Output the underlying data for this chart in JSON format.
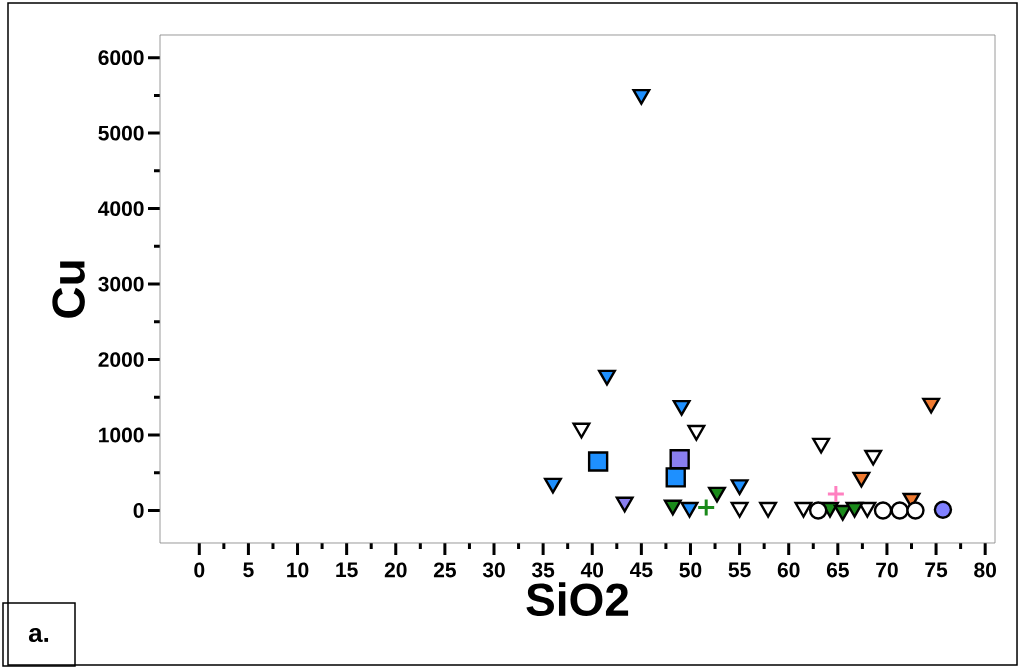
{
  "chart_data": {
    "type": "scatter",
    "xlabel": "SiO2",
    "ylabel": "Cu",
    "xlim": [
      -4,
      81
    ],
    "ylim": [
      -430,
      6300
    ],
    "xticks": [
      0,
      5,
      10,
      15,
      20,
      25,
      30,
      35,
      40,
      45,
      50,
      55,
      60,
      65,
      70,
      75,
      80
    ],
    "yticks": [
      0,
      1000,
      2000,
      3000,
      4000,
      5000,
      6000
    ],
    "annotations": [
      "a."
    ],
    "series": [
      {
        "color": "#1e90ff",
        "marker": "triangle",
        "x": [
          45.0,
          41.5,
          49.1,
          36.0,
          55.0,
          49.9
        ],
        "values": [
          5510,
          1790,
          1390,
          360,
          340,
          40
        ]
      },
      {
        "color": "#ffffff",
        "marker": "triangle",
        "x": [
          38.9,
          50.6,
          63.3,
          68.6,
          55.0,
          57.9,
          61.5,
          68.0
        ],
        "values": [
          1090,
          1060,
          890,
          730,
          40,
          40,
          40,
          40
        ]
      },
      {
        "color": "#1e90ff",
        "marker": "square",
        "x": [
          40.6,
          48.5
        ],
        "values": [
          650,
          440
        ]
      },
      {
        "color": "#8a7ff0",
        "marker": "square",
        "x": [
          48.9
        ],
        "values": [
          680
        ]
      },
      {
        "color": "#8a7ff0",
        "marker": "triangle",
        "x": [
          43.3
        ],
        "values": [
          110
        ]
      },
      {
        "color": "#1a8a1a",
        "marker": "triangle",
        "x": [
          52.7,
          48.2,
          64.2,
          65.5,
          66.7
        ],
        "values": [
          240,
          70,
          40,
          0,
          40
        ]
      },
      {
        "color": "#1a8a1a",
        "marker": "cross",
        "x": [
          51.6
        ],
        "values": [
          40
        ]
      },
      {
        "color": "#ff80c0",
        "marker": "cross",
        "x": [
          64.8
        ],
        "values": [
          220
        ]
      },
      {
        "color": "#f07a30",
        "marker": "triangle",
        "x": [
          74.5,
          67.4,
          72.5
        ],
        "values": [
          1420,
          440,
          160
        ]
      },
      {
        "color": "#ffffff",
        "marker": "circle",
        "x": [
          63.0,
          69.6,
          71.3,
          72.9
        ],
        "values": [
          0,
          0,
          0,
          0
        ]
      },
      {
        "color": "#8080ff",
        "marker": "circle",
        "x": [
          75.7
        ],
        "values": [
          10
        ]
      }
    ]
  }
}
